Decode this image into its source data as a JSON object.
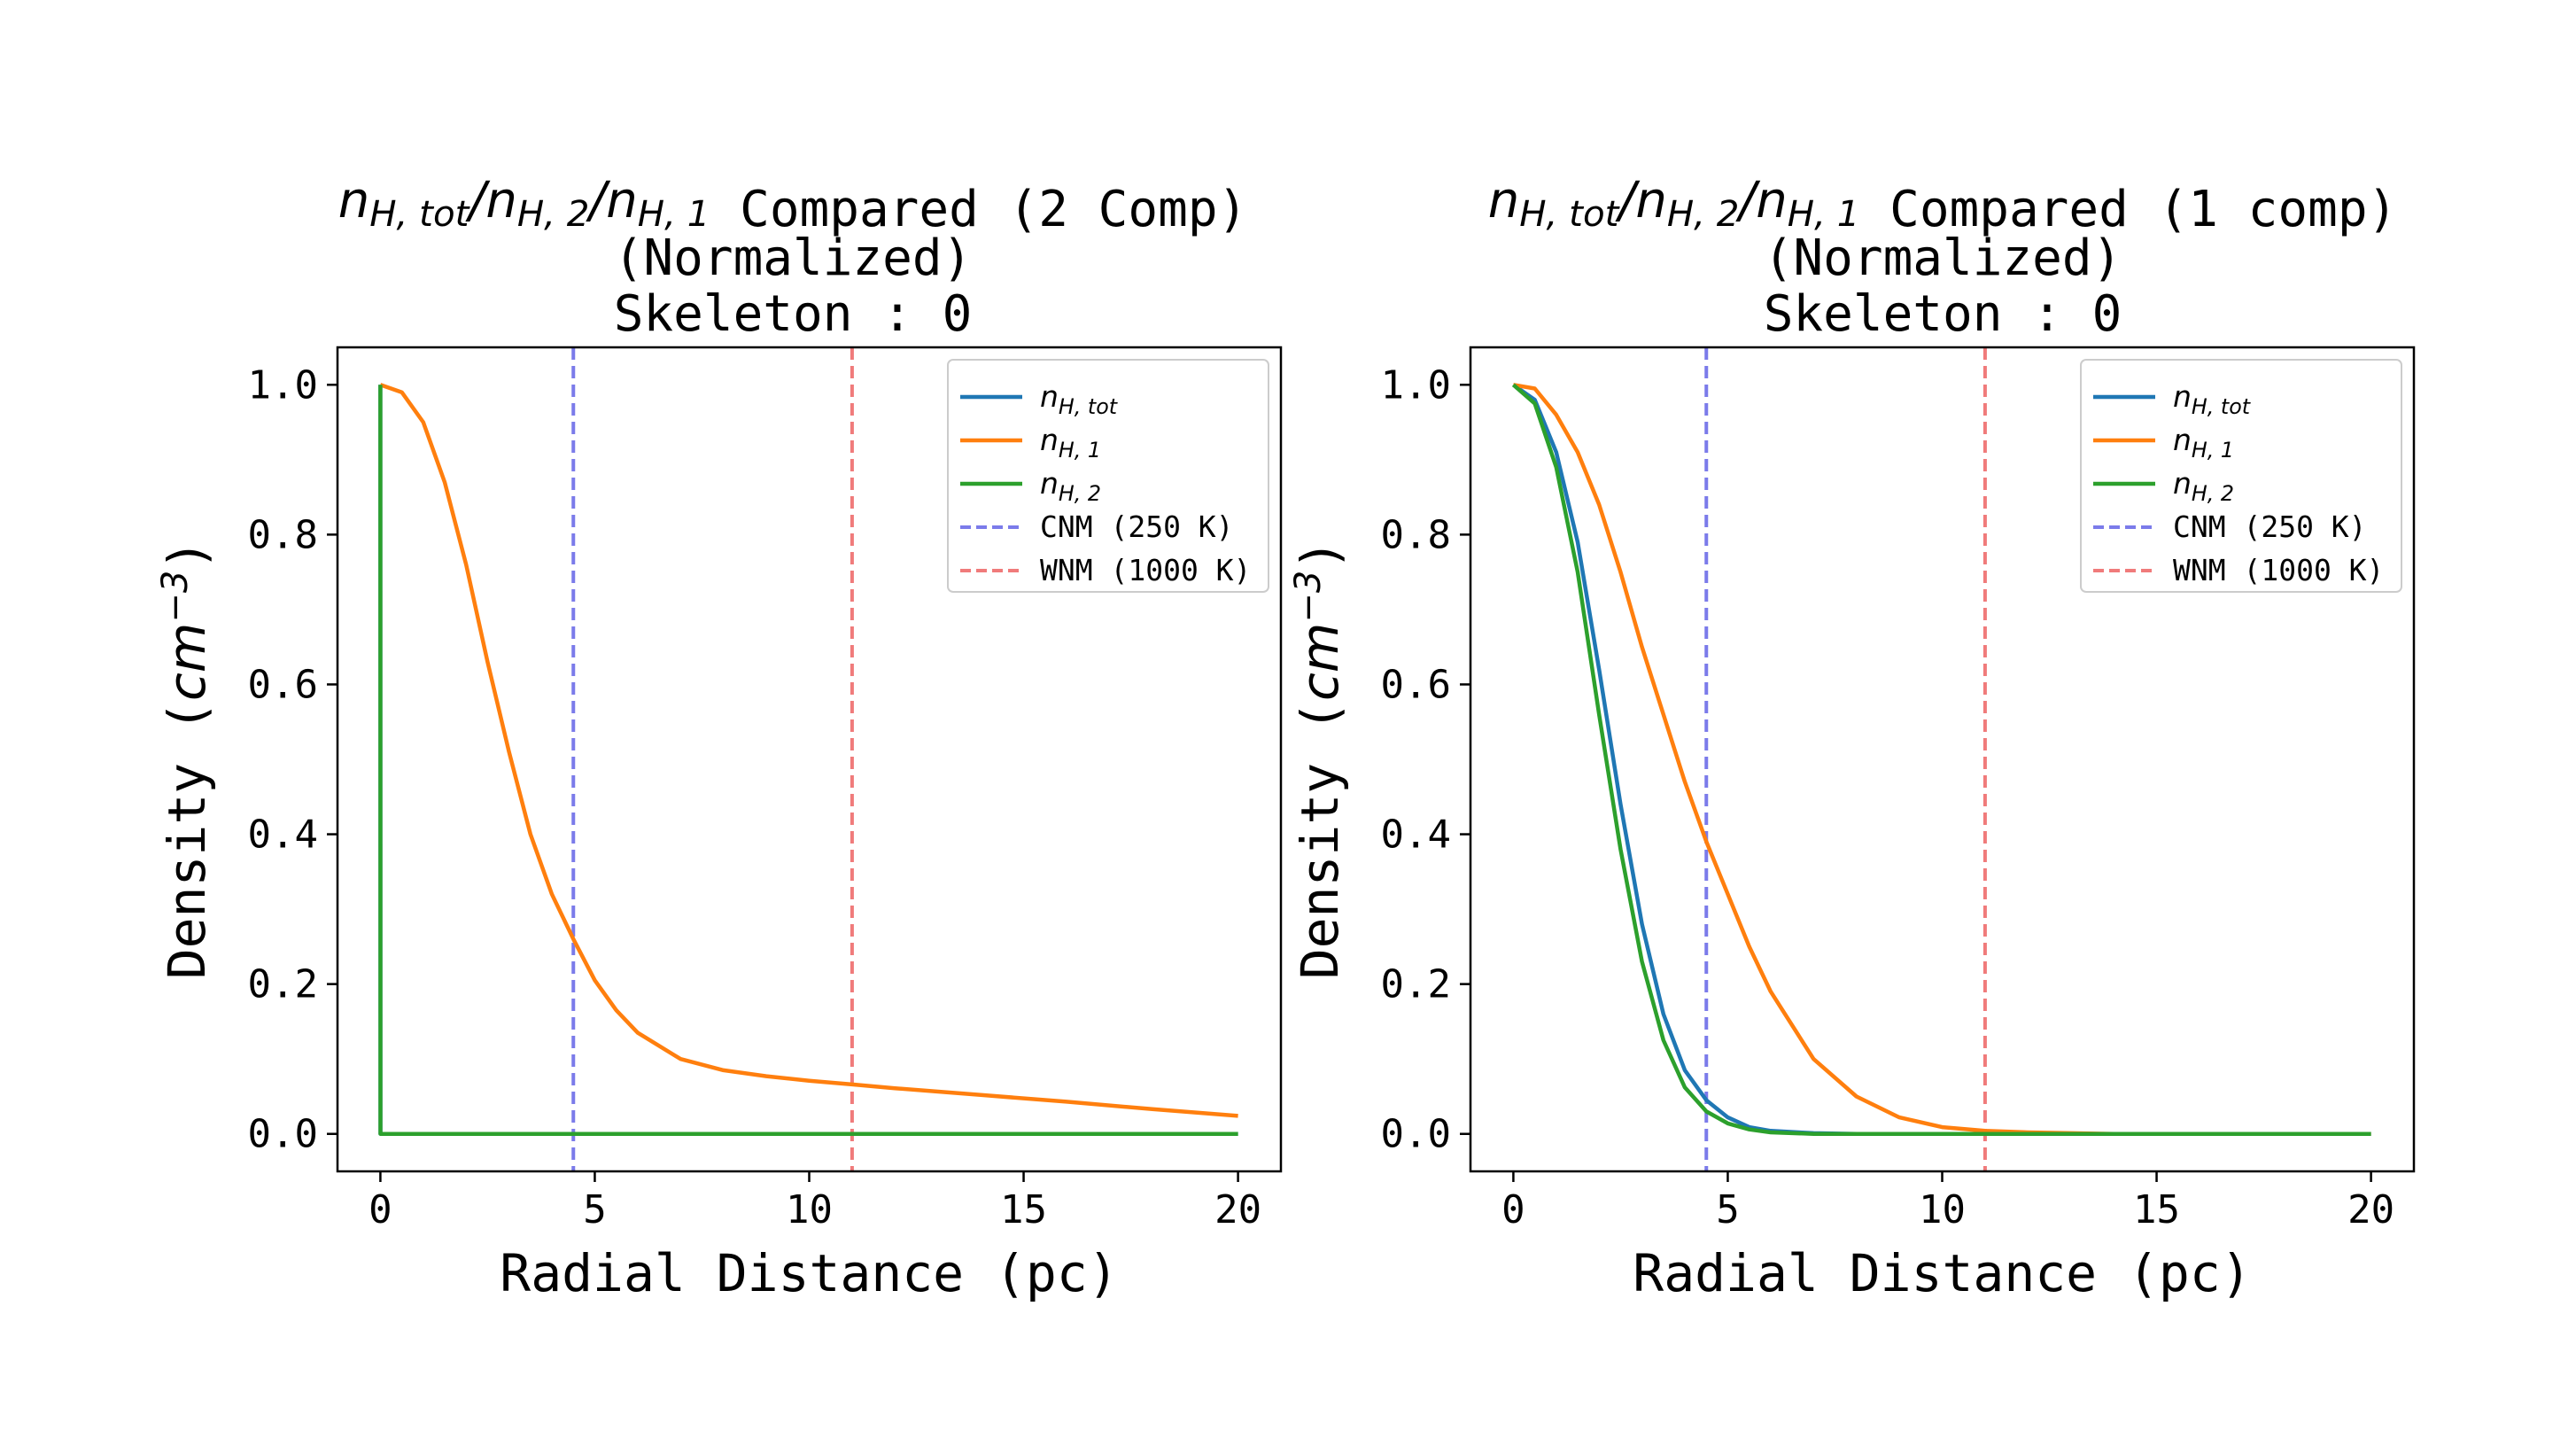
{
  "chart_data": [
    {
      "type": "line",
      "title": {
        "math_parts": [
          "n",
          "H, tot",
          "/",
          "n",
          "H, 2",
          "/",
          "n",
          "H, 1"
        ],
        "line1_text": " Compared (2 Comp)",
        "line2": "(Normalized)",
        "line3": "Skeleton : 0"
      },
      "xlabel": "Radial Distance (pc)",
      "ylabel": "Density (",
      "ylabel_unit": {
        "base": "cm",
        "exp": "−3",
        "close": ")"
      },
      "xlim": [
        -1,
        21
      ],
      "ylim": [
        -0.05,
        1.05
      ],
      "xticks": [
        0,
        5,
        10,
        15,
        20
      ],
      "xtick_labels": [
        "0",
        "5",
        "10",
        "15",
        "20"
      ],
      "yticks": [
        0.0,
        0.2,
        0.4,
        0.6,
        0.8,
        1.0
      ],
      "ytick_labels": [
        "0.0",
        "0.2",
        "0.4",
        "0.6",
        "0.8",
        "1.0"
      ],
      "legend": "top-right",
      "series": [
        {
          "name": "n_{H, tot}",
          "name_base": "n",
          "name_sub": "H, tot",
          "color": "#1f77b4",
          "x": [
            0,
            0.001,
            0.05,
            20
          ],
          "y": [
            1.0,
            0.0,
            0.0,
            0.0
          ]
        },
        {
          "name": "n_{H, 1}",
          "name_base": "n",
          "name_sub": "H, 1",
          "color": "#ff7f0e",
          "x": [
            0,
            0.5,
            1,
            1.5,
            2,
            2.5,
            3,
            3.5,
            4,
            4.5,
            5,
            5.5,
            6,
            7,
            8,
            9,
            10,
            11,
            12,
            14,
            16,
            18,
            20
          ],
          "y": [
            1.0,
            0.99,
            0.95,
            0.87,
            0.76,
            0.63,
            0.51,
            0.4,
            0.32,
            0.26,
            0.205,
            0.165,
            0.135,
            0.1,
            0.085,
            0.077,
            0.071,
            0.066,
            0.061,
            0.052,
            0.043,
            0.033,
            0.024
          ]
        },
        {
          "name": "n_{H, 2}",
          "name_base": "n",
          "name_sub": "H, 2",
          "color": "#2ca02c",
          "x": [
            0,
            0.001,
            0.05,
            20
          ],
          "y": [
            1.0,
            0.0,
            0.0,
            0.0
          ]
        }
      ],
      "vlines": [
        {
          "name": "CNM (250 K)",
          "x": 4.5,
          "color": "#7b7bea",
          "style": "dashed"
        },
        {
          "name": "WNM (1000 K)",
          "x": 11.0,
          "color": "#f07b7b",
          "style": "dashed"
        }
      ]
    },
    {
      "type": "line",
      "title": {
        "math_parts": [
          "n",
          "H, tot",
          "/",
          "n",
          "H, 2",
          "/",
          "n",
          "H, 1"
        ],
        "line1_text": " Compared (1 comp)",
        "line2": "(Normalized)",
        "line3": "Skeleton : 0"
      },
      "xlabel": "Radial Distance (pc)",
      "ylabel": "Density (",
      "ylabel_unit": {
        "base": "cm",
        "exp": "−3",
        "close": ")"
      },
      "xlim": [
        -1,
        21
      ],
      "ylim": [
        -0.05,
        1.05
      ],
      "xticks": [
        0,
        5,
        10,
        15,
        20
      ],
      "xtick_labels": [
        "0",
        "5",
        "10",
        "15",
        "20"
      ],
      "yticks": [
        0.0,
        0.2,
        0.4,
        0.6,
        0.8,
        1.0
      ],
      "ytick_labels": [
        "0.0",
        "0.2",
        "0.4",
        "0.6",
        "0.8",
        "1.0"
      ],
      "legend": "top-right",
      "series": [
        {
          "name": "n_{H, tot}",
          "name_base": "n",
          "name_sub": "H, tot",
          "color": "#1f77b4",
          "x": [
            0,
            0.5,
            1,
            1.5,
            2,
            2.5,
            3,
            3.5,
            4,
            4.5,
            5,
            5.5,
            6,
            7,
            8,
            10,
            12,
            15,
            20
          ],
          "y": [
            1.0,
            0.98,
            0.91,
            0.79,
            0.62,
            0.44,
            0.28,
            0.16,
            0.085,
            0.045,
            0.022,
            0.009,
            0.004,
            0.001,
            0.0,
            0.0,
            0.0,
            0.0,
            0.0
          ]
        },
        {
          "name": "n_{H, 1}",
          "name_base": "n",
          "name_sub": "H, 1",
          "color": "#ff7f0e",
          "x": [
            0,
            0.5,
            1,
            1.5,
            2,
            2.5,
            3,
            3.5,
            4,
            4.5,
            5,
            5.5,
            6,
            7,
            8,
            9,
            10,
            11,
            12,
            14,
            16,
            20
          ],
          "y": [
            1.0,
            0.995,
            0.96,
            0.91,
            0.84,
            0.75,
            0.65,
            0.56,
            0.47,
            0.39,
            0.32,
            0.25,
            0.19,
            0.1,
            0.05,
            0.022,
            0.009,
            0.004,
            0.002,
            0.0,
            0.0,
            0.0
          ]
        },
        {
          "name": "n_{H, 2}",
          "name_base": "n",
          "name_sub": "H, 2",
          "color": "#2ca02c",
          "x": [
            0,
            0.5,
            1,
            1.5,
            2,
            2.5,
            3,
            3.5,
            4,
            4.5,
            5,
            5.5,
            6,
            7,
            8,
            10,
            12,
            15,
            20
          ],
          "y": [
            1.0,
            0.975,
            0.89,
            0.75,
            0.56,
            0.38,
            0.23,
            0.125,
            0.062,
            0.03,
            0.014,
            0.006,
            0.002,
            0.0,
            0.0,
            0.0,
            0.0,
            0.0,
            0.0
          ]
        }
      ],
      "vlines": [
        {
          "name": "CNM (250 K)",
          "x": 4.5,
          "color": "#7b7bea",
          "style": "dashed"
        },
        {
          "name": "WNM (1000 K)",
          "x": 11.0,
          "color": "#f07b7b",
          "style": "dashed"
        }
      ]
    }
  ]
}
